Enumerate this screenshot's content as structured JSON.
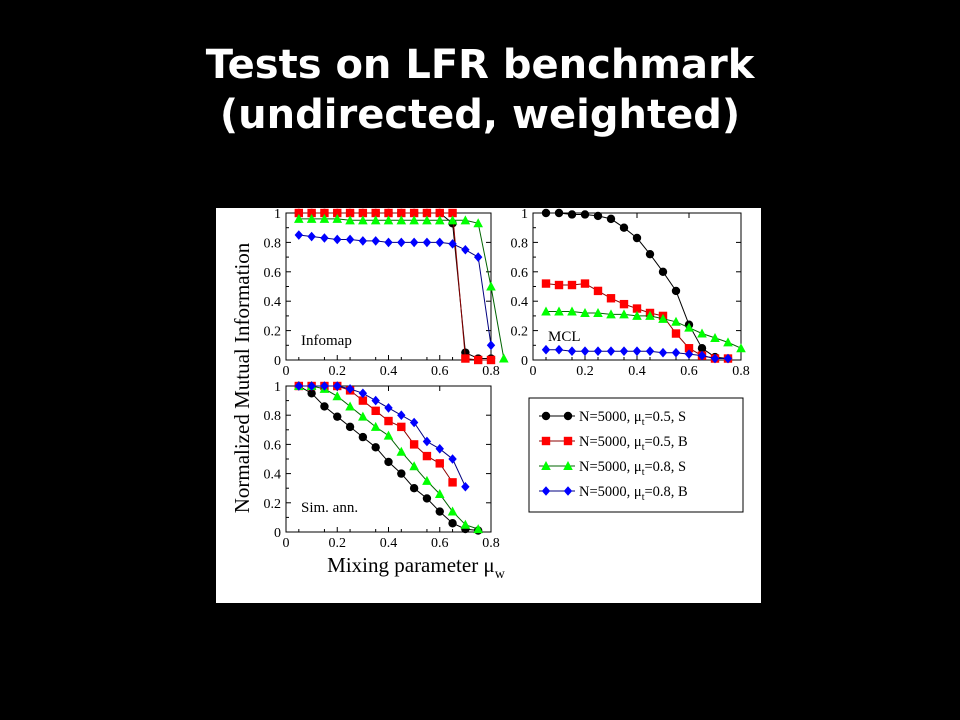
{
  "title": {
    "line1": "Tests on LFR benchmark",
    "line2": "(undirected, weighted)"
  },
  "chart_data": {
    "type": "line",
    "shared_ylabel": "Normalized Mutual Information",
    "shared_xlabel": "Mixing parameter μ",
    "shared_xlabel_subscript": "w",
    "legend_placement": "bottom-right panel",
    "legend": [
      {
        "text": "N=5000,  μ",
        "sub": "t",
        "rest": "=0.5, S"
      },
      {
        "text": "N=5000,  μ",
        "sub": "t",
        "rest": "=0.5, B"
      },
      {
        "text": "N=5000,  μ",
        "sub": "t",
        "rest": "=0.8, S"
      },
      {
        "text": "N=5000,  μ",
        "sub": "t",
        "rest": "=0.8, B"
      }
    ],
    "series_styles": [
      {
        "marker": "circle",
        "fill": "#000000",
        "line": "#000000"
      },
      {
        "marker": "square",
        "fill": "#ff0000",
        "line": "#8b0000"
      },
      {
        "marker": "triangle",
        "fill": "#00ff00",
        "line": "#006400"
      },
      {
        "marker": "diamond",
        "fill": "#0000ff",
        "line": "#000080"
      }
    ],
    "xlim": [
      0,
      0.8
    ],
    "ylim": [
      0,
      1
    ],
    "xticks": [
      "0",
      "0.2",
      "0.4",
      "0.6",
      "0.8"
    ],
    "yticks": [
      "0",
      "0.2",
      "0.4",
      "0.6",
      "0.8",
      "1"
    ],
    "panels": [
      {
        "label": "Infomap",
        "series": [
          {
            "x": [
              0.05,
              0.1,
              0.15,
              0.2,
              0.25,
              0.3,
              0.35,
              0.4,
              0.45,
              0.5,
              0.55,
              0.6,
              0.65,
              0.7,
              0.75,
              0.8
            ],
            "y": [
              1,
              1,
              1,
              1,
              1,
              1,
              1,
              1,
              1,
              1,
              1,
              1,
              0.93,
              0.05,
              0.01,
              0.01
            ]
          },
          {
            "x": [
              0.05,
              0.1,
              0.15,
              0.2,
              0.25,
              0.3,
              0.35,
              0.4,
              0.45,
              0.5,
              0.55,
              0.6,
              0.65,
              0.7,
              0.75,
              0.8
            ],
            "y": [
              1,
              1,
              1,
              1,
              1,
              1,
              1,
              1,
              1,
              1,
              1,
              1,
              1,
              0.01,
              0,
              0
            ]
          },
          {
            "x": [
              0.05,
              0.1,
              0.15,
              0.2,
              0.25,
              0.3,
              0.35,
              0.4,
              0.45,
              0.5,
              0.55,
              0.6,
              0.65,
              0.7,
              0.75,
              0.8,
              0.85
            ],
            "y": [
              0.96,
              0.96,
              0.96,
              0.96,
              0.95,
              0.95,
              0.95,
              0.95,
              0.95,
              0.95,
              0.95,
              0.95,
              0.95,
              0.95,
              0.93,
              0.5,
              0.01
            ]
          },
          {
            "x": [
              0.05,
              0.1,
              0.15,
              0.2,
              0.25,
              0.3,
              0.35,
              0.4,
              0.45,
              0.5,
              0.55,
              0.6,
              0.65,
              0.7,
              0.75,
              0.8
            ],
            "y": [
              0.85,
              0.84,
              0.83,
              0.82,
              0.82,
              0.81,
              0.81,
              0.8,
              0.8,
              0.8,
              0.8,
              0.8,
              0.79,
              0.75,
              0.7,
              0.1
            ]
          }
        ]
      },
      {
        "label": "MCL",
        "series": [
          {
            "x": [
              0.05,
              0.1,
              0.15,
              0.2,
              0.25,
              0.3,
              0.35,
              0.4,
              0.45,
              0.5,
              0.55,
              0.6,
              0.65,
              0.7,
              0.75
            ],
            "y": [
              1,
              1,
              0.99,
              0.99,
              0.98,
              0.96,
              0.9,
              0.83,
              0.72,
              0.6,
              0.47,
              0.24,
              0.08,
              0.02,
              0.01
            ]
          },
          {
            "x": [
              0.05,
              0.1,
              0.15,
              0.2,
              0.25,
              0.3,
              0.35,
              0.4,
              0.45,
              0.5,
              0.55,
              0.6,
              0.65,
              0.7,
              0.75
            ],
            "y": [
              0.52,
              0.51,
              0.51,
              0.52,
              0.47,
              0.42,
              0.38,
              0.35,
              0.32,
              0.3,
              0.18,
              0.08,
              0.03,
              0.01,
              0.01
            ]
          },
          {
            "x": [
              0.05,
              0.1,
              0.15,
              0.2,
              0.25,
              0.3,
              0.35,
              0.4,
              0.45,
              0.5,
              0.55,
              0.6,
              0.65,
              0.7,
              0.75,
              0.8
            ],
            "y": [
              0.33,
              0.33,
              0.33,
              0.32,
              0.32,
              0.31,
              0.31,
              0.3,
              0.3,
              0.28,
              0.26,
              0.22,
              0.18,
              0.15,
              0.12,
              0.08
            ]
          },
          {
            "x": [
              0.05,
              0.1,
              0.15,
              0.2,
              0.25,
              0.3,
              0.35,
              0.4,
              0.45,
              0.5,
              0.55,
              0.6,
              0.65,
              0.7,
              0.75
            ],
            "y": [
              0.07,
              0.07,
              0.06,
              0.06,
              0.06,
              0.06,
              0.06,
              0.06,
              0.06,
              0.05,
              0.05,
              0.04,
              0.03,
              0.01,
              0.01
            ]
          }
        ]
      },
      {
        "label": "Sim. ann.",
        "series": [
          {
            "x": [
              0.05,
              0.1,
              0.15,
              0.2,
              0.25,
              0.3,
              0.35,
              0.4,
              0.45,
              0.5,
              0.55,
              0.6,
              0.65,
              0.7,
              0.75
            ],
            "y": [
              1,
              0.95,
              0.86,
              0.79,
              0.72,
              0.65,
              0.58,
              0.48,
              0.4,
              0.3,
              0.23,
              0.14,
              0.06,
              0.02,
              0.01
            ]
          },
          {
            "x": [
              0.05,
              0.1,
              0.15,
              0.2,
              0.25,
              0.3,
              0.35,
              0.4,
              0.45,
              0.5,
              0.55,
              0.6,
              0.65
            ],
            "y": [
              1,
              1,
              1,
              1,
              0.97,
              0.9,
              0.83,
              0.76,
              0.72,
              0.6,
              0.52,
              0.47,
              0.34
            ]
          },
          {
            "x": [
              0.05,
              0.1,
              0.15,
              0.2,
              0.25,
              0.3,
              0.35,
              0.4,
              0.45,
              0.5,
              0.55,
              0.6,
              0.65,
              0.7,
              0.75
            ],
            "y": [
              1,
              1,
              0.98,
              0.93,
              0.86,
              0.79,
              0.72,
              0.66,
              0.55,
              0.45,
              0.35,
              0.26,
              0.14,
              0.05,
              0.02
            ]
          },
          {
            "x": [
              0.05,
              0.1,
              0.15,
              0.2,
              0.25,
              0.3,
              0.35,
              0.4,
              0.45,
              0.5,
              0.55,
              0.6,
              0.65,
              0.7
            ],
            "y": [
              1,
              1,
              1,
              1,
              0.98,
              0.95,
              0.9,
              0.85,
              0.8,
              0.75,
              0.62,
              0.57,
              0.5,
              0.31
            ]
          }
        ]
      }
    ]
  }
}
